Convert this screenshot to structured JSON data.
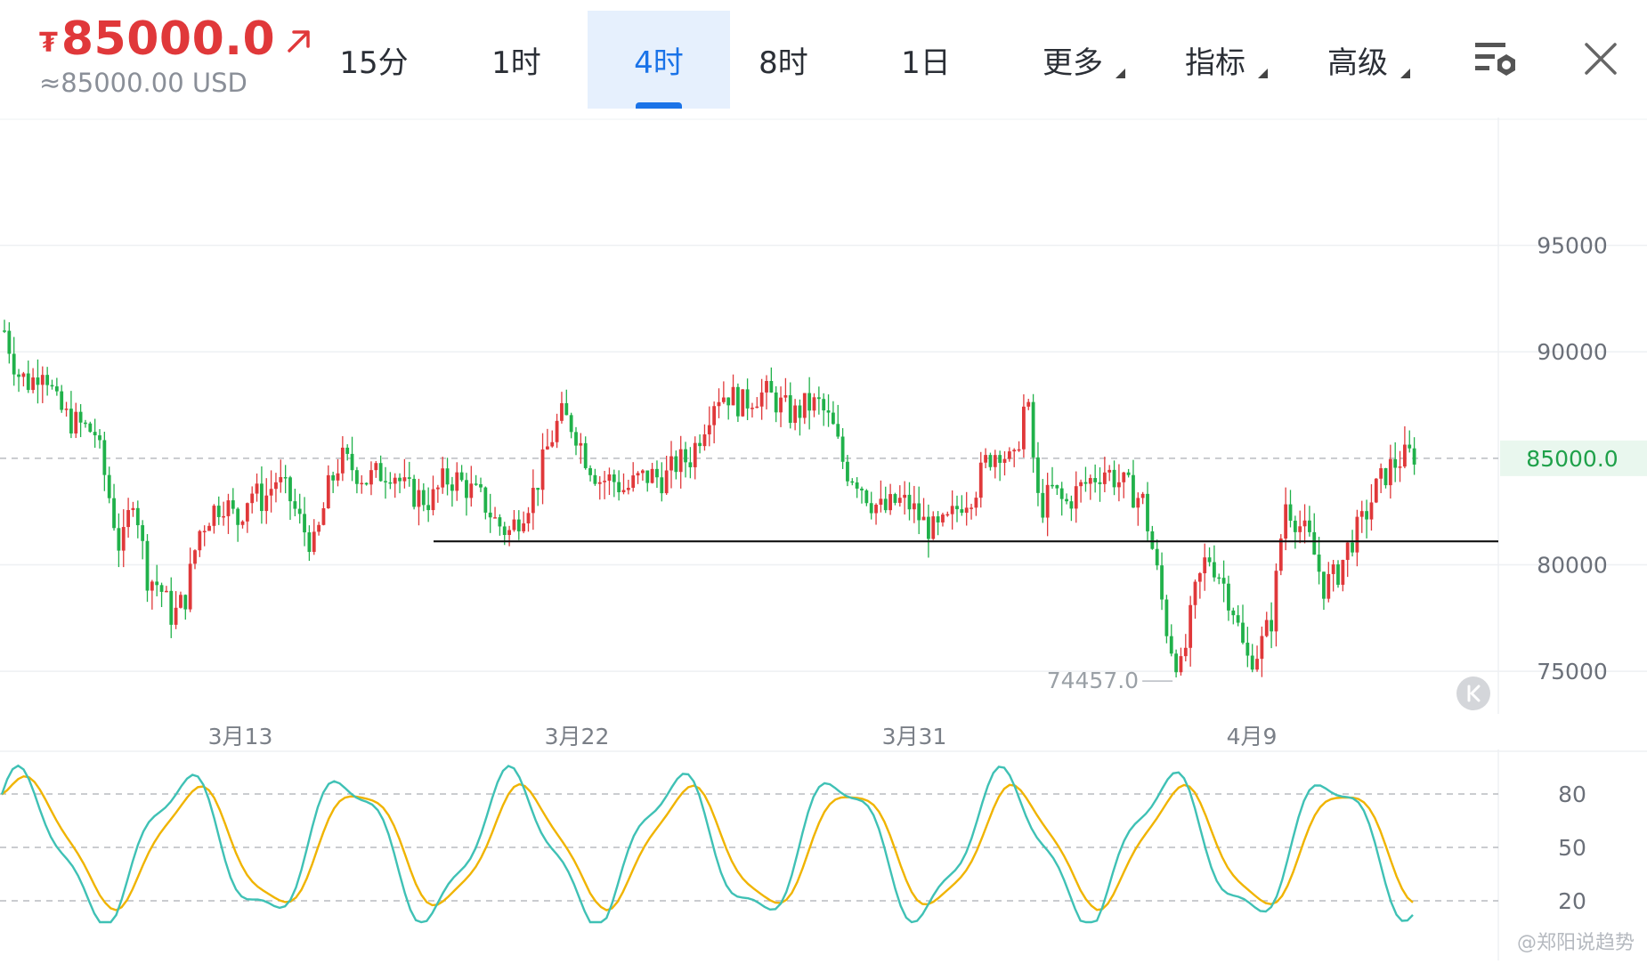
{
  "header": {
    "currency_symbol": "₮",
    "price": "85000.0",
    "usd_price": "≈85000.00 USD"
  },
  "tabs": [
    {
      "label": "15分",
      "active": false
    },
    {
      "label": "1时",
      "active": false
    },
    {
      "label": "4时",
      "active": true
    },
    {
      "label": "8时",
      "active": false
    },
    {
      "label": "1日",
      "active": false
    },
    {
      "label": "更多",
      "active": false
    },
    {
      "label": "指标",
      "active": false
    },
    {
      "label": "高级",
      "active": false
    }
  ],
  "icons": {
    "trend": "arrow-up-right-icon",
    "settings": "chart-settings-icon",
    "close": "close-icon",
    "back": "scroll-to-latest-icon"
  },
  "colors": {
    "up": "#e0383a",
    "down": "#20b14a",
    "active_tab": "#1a73e8",
    "k_line": "#3fc1b5",
    "d_line": "#f0b400"
  },
  "chart": {
    "price_ticks": [
      "95000",
      "90000",
      "85000.0",
      "75000",
      "80000"
    ],
    "current_price_label": "85000.0",
    "low_label": "74457.0",
    "dates": [
      "3月13",
      "3月22",
      "3月31",
      "4月9"
    ],
    "kdj_ticks": [
      "80",
      "50",
      "20"
    ],
    "support_level": 81100
  },
  "watermark": "@郑阳说趋势",
  "chart_data": {
    "type": "candlestick",
    "timeframe": "4时",
    "ylim": [
      73000,
      101000
    ],
    "support_line": 81100,
    "series": [
      {
        "name": "price_path",
        "values": [
          91000,
          89000,
          88500,
          89500,
          87500,
          86800,
          86500,
          86200,
          83500,
          80500,
          83500,
          79500,
          79000,
          77500,
          78500,
          81500,
          82500,
          83000,
          82000,
          83500,
          83000,
          84000,
          83200,
          81800,
          80800,
          83500,
          85000,
          84500,
          84000,
          84300,
          84500,
          83500,
          83200,
          83000,
          84000,
          84000,
          83500,
          83000,
          82000,
          81500,
          82500,
          83500,
          85500,
          87000,
          86500,
          85000,
          84000,
          84000,
          83500,
          84000,
          84200,
          84000,
          84800,
          85000,
          86500,
          88000,
          88000,
          87500,
          88000,
          88000,
          87500,
          87000,
          87500,
          87500,
          86500,
          84500,
          84000,
          83000,
          82500,
          83000,
          82800,
          82000,
          81500,
          82000,
          83000,
          83500,
          85000,
          85500,
          84500,
          88000,
          82500,
          83500,
          82800,
          83500,
          84000,
          84500,
          84000,
          83500,
          83000,
          80000,
          76500,
          75000,
          78500,
          80500,
          79500,
          78000,
          75500,
          76000,
          77500,
          83000,
          82000,
          81000,
          79000,
          79500,
          81000,
          82000,
          83500,
          84500,
          85000,
          85200
        ]
      }
    ],
    "kdj": {
      "ylim": [
        0,
        100
      ],
      "ref_lines": [
        80,
        50,
        20
      ]
    }
  }
}
